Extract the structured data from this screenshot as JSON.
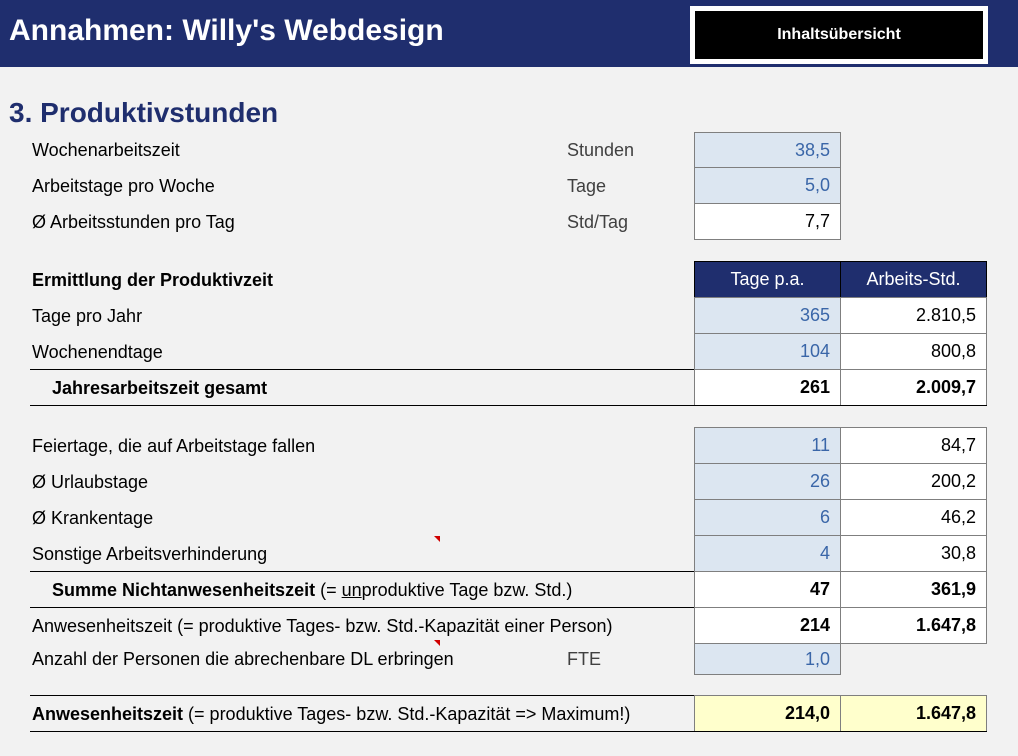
{
  "header": {
    "title": "Annahmen: Willy's Webdesign",
    "toc_button": "Inhaltsübersicht"
  },
  "section_title": "3. Produktivstunden",
  "basics": [
    {
      "label": "Wochenarbeitszeit",
      "unit": "Stunden",
      "value": "38,5"
    },
    {
      "label": "Arbeitstage pro Woche",
      "unit": "Tage",
      "value": "5,0"
    },
    {
      "label": "Ø Arbeitsstunden pro Tag",
      "unit": "Std/Tag",
      "value": "7,7"
    }
  ],
  "productive": {
    "heading": "Ermittlung der Produktivzeit",
    "col_days": "Tage p.a.",
    "col_hours": "Arbeits-Std.",
    "rows": [
      {
        "label": "Tage pro Jahr",
        "days": "365",
        "hours": "2.810,5"
      },
      {
        "label": "Wochenendtage",
        "days": "104",
        "hours": "800,8"
      }
    ],
    "total": {
      "label": "Jahresarbeitszeit gesamt",
      "days": "261",
      "hours": "2.009,7"
    }
  },
  "absence": {
    "rows": [
      {
        "label": "Feiertage, die auf Arbeitstage fallen",
        "days": "11",
        "hours": "84,7"
      },
      {
        "label": "Ø Urlaubstage",
        "days": "26",
        "hours": "200,2"
      },
      {
        "label": "Ø Krankentage",
        "days": "6",
        "hours": "46,2"
      },
      {
        "label": "Sonstige Arbeitsverhinderung",
        "days": "4",
        "hours": "30,8"
      }
    ],
    "sum": {
      "label_bold": "Summe Nichtanwesenheitszeit",
      "label_pre": "(= ",
      "label_underline": "un",
      "label_post": "produktive Tage bzw. Std.)",
      "days": "47",
      "hours": "361,9"
    }
  },
  "presence": {
    "label": "Anwesenheitszeit (= produktive Tages- bzw. Std.-Kapazität einer Person)",
    "days": "214",
    "hours": "1.647,8"
  },
  "persons": {
    "label": "Anzahl der Personen die abrechenbare DL erbringen",
    "unit": "FTE",
    "value": "1,0"
  },
  "result": {
    "label_bold": "Anwesenheitszeit",
    "label_rest": " (= produktive Tages- bzw. Std.-Kapazität => Maximum!)",
    "days": "214,0",
    "hours": "1.647,8"
  },
  "colors": {
    "navy": "#1f2e6e",
    "input_fill": "#dce6f1",
    "input_text": "#3a66a8",
    "highlight": "#ffffcc"
  }
}
